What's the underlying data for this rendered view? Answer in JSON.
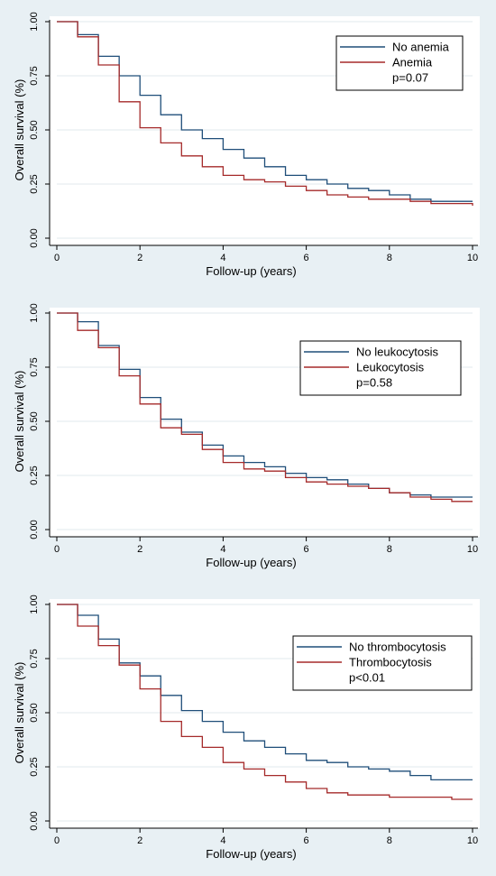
{
  "colors": {
    "series1": "#1f4e79",
    "series2": "#a52a2a",
    "background": "#e8f0f4",
    "plot_background": "#ffffff"
  },
  "chart_data": [
    {
      "type": "line",
      "step": true,
      "xlabel": "Follow-up (years)",
      "ylabel": "Overall survival (%)",
      "xlim": [
        0,
        10
      ],
      "ylim": [
        0,
        1
      ],
      "x_ticks": [
        "0",
        "2",
        "4",
        "6",
        "8",
        "10"
      ],
      "y_ticks": [
        "0.00",
        "0.25",
        "0.50",
        "0.75",
        "1.00"
      ],
      "legend_position": "top-right",
      "annotation": "p=0.07",
      "series": [
        {
          "name": "No anemia",
          "color": "#1f4e79",
          "x": [
            0,
            0.5,
            1,
            1.5,
            2,
            2.5,
            3,
            3.5,
            4,
            4.5,
            5,
            5.5,
            6,
            6.5,
            7,
            7.5,
            8,
            8.5,
            9,
            9.5,
            10
          ],
          "y": [
            1.0,
            0.94,
            0.84,
            0.75,
            0.66,
            0.57,
            0.5,
            0.46,
            0.41,
            0.37,
            0.33,
            0.29,
            0.27,
            0.25,
            0.23,
            0.22,
            0.2,
            0.18,
            0.17,
            0.17,
            0.17
          ]
        },
        {
          "name": "Anemia",
          "color": "#a52a2a",
          "x": [
            0,
            0.5,
            1,
            1.5,
            2,
            2.5,
            3,
            3.5,
            4,
            4.5,
            5,
            5.5,
            6,
            6.5,
            7,
            7.5,
            8,
            8.5,
            9,
            9.5,
            10
          ],
          "y": [
            1.0,
            0.93,
            0.8,
            0.63,
            0.51,
            0.44,
            0.38,
            0.33,
            0.29,
            0.27,
            0.26,
            0.24,
            0.22,
            0.2,
            0.19,
            0.18,
            0.18,
            0.17,
            0.16,
            0.16,
            0.15
          ]
        }
      ]
    },
    {
      "type": "line",
      "step": true,
      "xlabel": "Follow-up (years)",
      "ylabel": "Overall survival (%)",
      "xlim": [
        0,
        10
      ],
      "ylim": [
        0,
        1
      ],
      "x_ticks": [
        "0",
        "2",
        "4",
        "6",
        "8",
        "10"
      ],
      "y_ticks": [
        "0.00",
        "0.25",
        "0.50",
        "0.75",
        "1.00"
      ],
      "legend_position": "top-right",
      "annotation": "p=0.58",
      "series": [
        {
          "name": "No leukocytosis",
          "color": "#1f4e79",
          "x": [
            0,
            0.5,
            1,
            1.5,
            2,
            2.5,
            3,
            3.5,
            4,
            4.5,
            5,
            5.5,
            6,
            6.5,
            7,
            7.5,
            8,
            8.5,
            9,
            9.5,
            10
          ],
          "y": [
            1.0,
            0.96,
            0.85,
            0.74,
            0.61,
            0.51,
            0.45,
            0.39,
            0.34,
            0.31,
            0.29,
            0.26,
            0.24,
            0.23,
            0.21,
            0.19,
            0.17,
            0.16,
            0.15,
            0.15,
            0.15
          ]
        },
        {
          "name": "Leukocytosis",
          "color": "#a52a2a",
          "x": [
            0,
            0.5,
            1,
            1.5,
            2,
            2.5,
            3,
            3.5,
            4,
            4.5,
            5,
            5.5,
            6,
            6.5,
            7,
            7.5,
            8,
            8.5,
            9,
            9.5,
            10
          ],
          "y": [
            1.0,
            0.92,
            0.84,
            0.71,
            0.58,
            0.47,
            0.44,
            0.37,
            0.31,
            0.28,
            0.27,
            0.24,
            0.22,
            0.21,
            0.2,
            0.19,
            0.17,
            0.15,
            0.14,
            0.13,
            0.13
          ]
        }
      ]
    },
    {
      "type": "line",
      "step": true,
      "xlabel": "Follow-up (years)",
      "ylabel": "Overall survival (%)",
      "xlim": [
        0,
        10
      ],
      "ylim": [
        0,
        1
      ],
      "x_ticks": [
        "0",
        "2",
        "4",
        "6",
        "8",
        "10"
      ],
      "y_ticks": [
        "0.00",
        "0.25",
        "0.50",
        "0.75",
        "1.00"
      ],
      "legend_position": "top-right",
      "annotation": "p<0.01",
      "series": [
        {
          "name": "No thrombocytosis",
          "color": "#1f4e79",
          "x": [
            0,
            0.5,
            1,
            1.5,
            2,
            2.5,
            3,
            3.5,
            4,
            4.5,
            5,
            5.5,
            6,
            6.5,
            7,
            7.5,
            8,
            8.5,
            9,
            9.5,
            10
          ],
          "y": [
            1.0,
            0.95,
            0.84,
            0.73,
            0.67,
            0.58,
            0.51,
            0.46,
            0.41,
            0.37,
            0.34,
            0.31,
            0.28,
            0.27,
            0.25,
            0.24,
            0.23,
            0.21,
            0.19,
            0.19,
            0.19
          ]
        },
        {
          "name": "Thrombocytosis",
          "color": "#a52a2a",
          "x": [
            0,
            0.5,
            1,
            1.5,
            2,
            2.5,
            3,
            3.5,
            4,
            4.5,
            5,
            5.5,
            6,
            6.5,
            7,
            7.5,
            8,
            8.5,
            9,
            9.5,
            10
          ],
          "y": [
            1.0,
            0.9,
            0.81,
            0.72,
            0.61,
            0.46,
            0.39,
            0.34,
            0.27,
            0.24,
            0.21,
            0.18,
            0.15,
            0.13,
            0.12,
            0.12,
            0.11,
            0.11,
            0.11,
            0.1,
            0.1
          ]
        }
      ]
    }
  ]
}
